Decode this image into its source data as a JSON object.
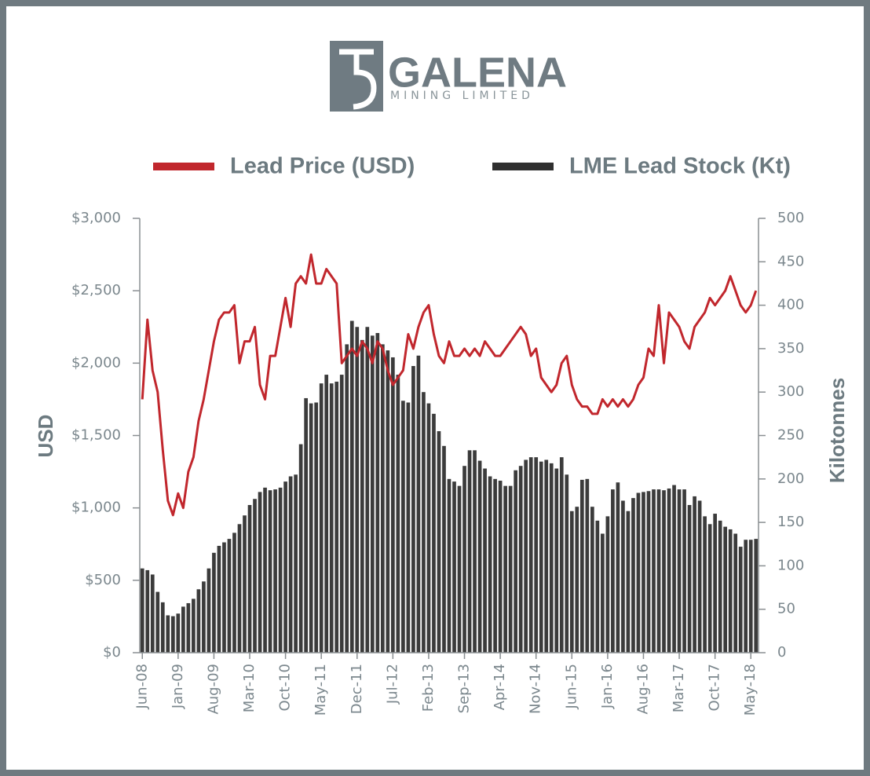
{
  "chart_data": {
    "type": "combo",
    "logo": {
      "name": "GALENA",
      "tagline": "MINING LIMITED"
    },
    "y_label": "USD",
    "y2_label": "Kilotonnes",
    "categories": [
      "Jun-08",
      null,
      null,
      null,
      null,
      null,
      null,
      "Jan-09",
      null,
      null,
      null,
      null,
      null,
      null,
      "Aug-09",
      null,
      null,
      null,
      null,
      null,
      null,
      "Mar-10",
      null,
      null,
      null,
      null,
      null,
      null,
      "Oct-10",
      null,
      null,
      null,
      null,
      null,
      null,
      "May-11",
      null,
      null,
      null,
      null,
      null,
      null,
      "Dec-11",
      null,
      null,
      null,
      null,
      null,
      null,
      "Jul-12",
      null,
      null,
      null,
      null,
      null,
      null,
      "Feb-13",
      null,
      null,
      null,
      null,
      null,
      null,
      "Sep-13",
      null,
      null,
      null,
      null,
      null,
      null,
      "Apr-14",
      null,
      null,
      null,
      null,
      null,
      null,
      "Nov-14",
      null,
      null,
      null,
      null,
      null,
      null,
      "Jun-15",
      null,
      null,
      null,
      null,
      null,
      null,
      "Jan-16",
      null,
      null,
      null,
      null,
      null,
      null,
      "Aug-16",
      null,
      null,
      null,
      null,
      null,
      null,
      "Mar-17",
      null,
      null,
      null,
      null,
      null,
      null,
      "Oct-17",
      null,
      null,
      null,
      null,
      null,
      null,
      "May-18",
      null
    ],
    "series": [
      {
        "name": "Lead Price (USD)",
        "type": "line",
        "axis": "y",
        "color": "#c1272d",
        "values": [
          1750,
          2300,
          1950,
          1800,
          1400,
          1050,
          950,
          1100,
          1000,
          1250,
          1350,
          1600,
          1750,
          1950,
          2150,
          2300,
          2350,
          2350,
          2400,
          2000,
          2150,
          2150,
          2250,
          1850,
          1750,
          2050,
          2050,
          2250,
          2450,
          2250,
          2550,
          2600,
          2550,
          2750,
          2550,
          2550,
          2650,
          2600,
          2550,
          2000,
          2050,
          2100,
          2050,
          2150,
          2100,
          2000,
          2150,
          2100,
          1950,
          1850,
          1900,
          1950,
          2200,
          2100,
          2250,
          2350,
          2400,
          2200,
          2050,
          2000,
          2150,
          2050,
          2050,
          2100,
          2050,
          2100,
          2050,
          2150,
          2100,
          2050,
          2050,
          2100,
          2150,
          2200,
          2250,
          2200,
          2050,
          2100,
          1900,
          1850,
          1800,
          1850,
          2000,
          2050,
          1850,
          1750,
          1700,
          1700,
          1650,
          1650,
          1750,
          1700,
          1750,
          1700,
          1750,
          1700,
          1750,
          1850,
          1900,
          2100,
          2050,
          2400,
          2000,
          2350,
          2300,
          2250,
          2150,
          2100,
          2250,
          2300,
          2350,
          2450,
          2400,
          2450,
          2500,
          2600,
          2500,
          2400,
          2350,
          2400,
          2500
        ]
      },
      {
        "name": "LME Lead Stock (Kt)",
        "type": "bar",
        "axis": "y2",
        "color": "#3b3b3b",
        "values": [
          97,
          95,
          90,
          70,
          58,
          43,
          42,
          45,
          53,
          57,
          62,
          73,
          82,
          97,
          115,
          123,
          127,
          131,
          138,
          148,
          158,
          170,
          177,
          185,
          190,
          187,
          188,
          190,
          197,
          203,
          205,
          240,
          293,
          287,
          288,
          310,
          320,
          310,
          312,
          320,
          355,
          382,
          375,
          360,
          375,
          365,
          368,
          355,
          348,
          340,
          320,
          290,
          288,
          330,
          342,
          300,
          287,
          275,
          255,
          238,
          200,
          197,
          192,
          215,
          233,
          233,
          221,
          212,
          203,
          200,
          198,
          192,
          192,
          210,
          215,
          222,
          225,
          225,
          220,
          222,
          218,
          212,
          225,
          205,
          163,
          168,
          199,
          200,
          168,
          152,
          137,
          157,
          188,
          196,
          175,
          163,
          178,
          184,
          185,
          186,
          188,
          188,
          187,
          189,
          193,
          188,
          188,
          170,
          180,
          175,
          157,
          148,
          160,
          152,
          145,
          142,
          137,
          122,
          130,
          130,
          131
        ]
      }
    ],
    "ylim": [
      0,
      3000
    ],
    "yticks": [
      {
        "value": 0,
        "label": "$0"
      },
      {
        "value": 500,
        "label": "$500"
      },
      {
        "value": 1000,
        "label": "$1,000"
      },
      {
        "value": 1500,
        "label": "$1,500"
      },
      {
        "value": 2000,
        "label": "$2,000"
      },
      {
        "value": 2500,
        "label": "$2,500"
      },
      {
        "value": 3000,
        "label": "$3,000"
      }
    ],
    "y2lim": [
      0,
      500
    ],
    "y2ticks": [
      0,
      50,
      100,
      150,
      200,
      250,
      300,
      350,
      400,
      450,
      500
    ],
    "grid": false
  }
}
